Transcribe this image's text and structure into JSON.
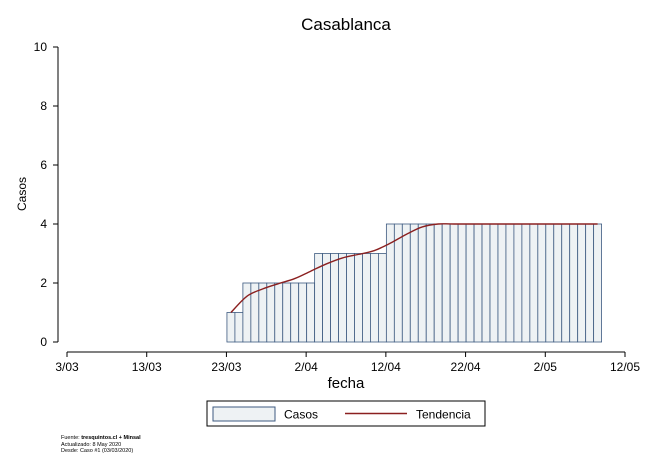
{
  "chart_data": {
    "type": "bar",
    "title": "Casablanca",
    "xlabel": "fecha",
    "ylabel": "Casos",
    "ylim": [
      0,
      10
    ],
    "yticks": [
      "0",
      "2",
      "4",
      "6",
      "8",
      "10"
    ],
    "xlim": [
      "2020-03-03",
      "2020-05-12"
    ],
    "xticks": [
      {
        "date": "2020-03-03",
        "label": "3/03"
      },
      {
        "date": "2020-03-13",
        "label": "13/03"
      },
      {
        "date": "2020-03-23",
        "label": "23/03"
      },
      {
        "date": "2020-04-02",
        "label": "2/04"
      },
      {
        "date": "2020-04-12",
        "label": "12/04"
      },
      {
        "date": "2020-04-22",
        "label": "22/04"
      },
      {
        "date": "2020-05-02",
        "label": "2/05"
      },
      {
        "date": "2020-05-12",
        "label": "12/05"
      }
    ],
    "series": [
      {
        "name": "Casos",
        "type": "bar",
        "color": "#eef2f4",
        "edge_color": "#3d5a80",
        "dates": [
          "2020-03-23",
          "2020-03-24",
          "2020-03-25",
          "2020-03-26",
          "2020-03-27",
          "2020-03-28",
          "2020-03-29",
          "2020-03-30",
          "2020-03-31",
          "2020-04-01",
          "2020-04-02",
          "2020-04-03",
          "2020-04-04",
          "2020-04-05",
          "2020-04-06",
          "2020-04-07",
          "2020-04-08",
          "2020-04-09",
          "2020-04-10",
          "2020-04-11",
          "2020-04-12",
          "2020-04-13",
          "2020-04-14",
          "2020-04-15",
          "2020-04-16",
          "2020-04-17",
          "2020-04-18",
          "2020-04-19",
          "2020-04-20",
          "2020-04-21",
          "2020-04-22",
          "2020-04-23",
          "2020-04-24",
          "2020-04-25",
          "2020-04-26",
          "2020-04-27",
          "2020-04-28",
          "2020-04-29",
          "2020-04-30",
          "2020-05-01",
          "2020-05-02",
          "2020-05-03",
          "2020-05-04",
          "2020-05-05",
          "2020-05-06",
          "2020-05-07",
          "2020-05-08"
        ],
        "values": [
          1,
          1,
          2,
          2,
          2,
          2,
          2,
          2,
          2,
          2,
          2,
          3,
          3,
          3,
          3,
          3,
          3,
          3,
          3,
          3,
          4,
          4,
          4,
          4,
          4,
          4,
          4,
          4,
          4,
          4,
          4,
          4,
          4,
          4,
          4,
          4,
          4,
          4,
          4,
          4,
          4,
          4,
          4,
          4,
          4,
          4,
          4
        ]
      },
      {
        "name": "Tendencia",
        "type": "line",
        "color": "#8b2020",
        "dates": [
          "2020-03-23",
          "2020-03-25",
          "2020-03-27",
          "2020-03-29",
          "2020-03-31",
          "2020-04-02",
          "2020-04-04",
          "2020-04-06",
          "2020-04-08",
          "2020-04-10",
          "2020-04-12",
          "2020-04-14",
          "2020-04-16",
          "2020-04-18",
          "2020-04-20",
          "2020-04-25",
          "2020-05-01",
          "2020-05-08"
        ],
        "values": [
          1.0,
          1.55,
          1.8,
          1.98,
          2.15,
          2.4,
          2.65,
          2.85,
          2.97,
          3.1,
          3.35,
          3.65,
          3.9,
          4.0,
          4.0,
          4.0,
          4.0,
          4.0
        ]
      }
    ],
    "legend": {
      "position": "bottom",
      "items": [
        "Casos",
        "Tendencia"
      ]
    },
    "grid": false
  },
  "source": {
    "prefix": "Fuente:",
    "brand": "tresquintos.cl + Minsal",
    "updated": "Actualizado: 8 May 2020",
    "since": "Desde: Caso #1  (03/03/2020)"
  }
}
